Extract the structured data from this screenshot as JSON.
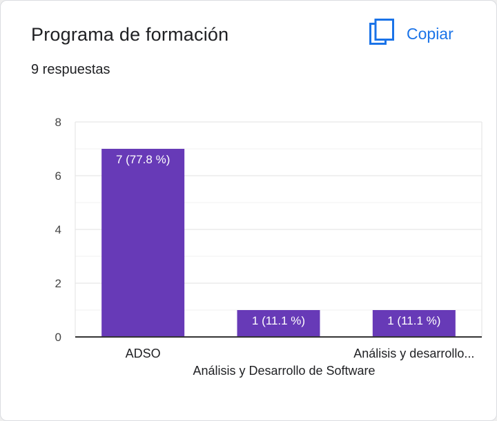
{
  "card": {
    "title": "Programa de formación",
    "subtitle": "9 respuestas",
    "copy_label": "Copiar",
    "copy_icon": "copy-icon"
  },
  "colors": {
    "bar": "#673ab7",
    "accent": "#1a73e8",
    "grid": "#e6e6e6",
    "axis": "#333333"
  },
  "chart_data": {
    "type": "bar",
    "title": "",
    "categories": [
      "ADSO",
      "Análisis y Desarrollo de Software",
      "Análisis y desarrollo..."
    ],
    "values": [
      7,
      1,
      1
    ],
    "data_labels": [
      "7 (77.8 %)",
      "1 (11.1 %)",
      "1 (11.1 %)"
    ],
    "ylim": [
      0,
      8
    ],
    "yticks": [
      0,
      2,
      4,
      6,
      8
    ],
    "grid": true,
    "legend": "none",
    "xlabel": "",
    "ylabel": ""
  }
}
